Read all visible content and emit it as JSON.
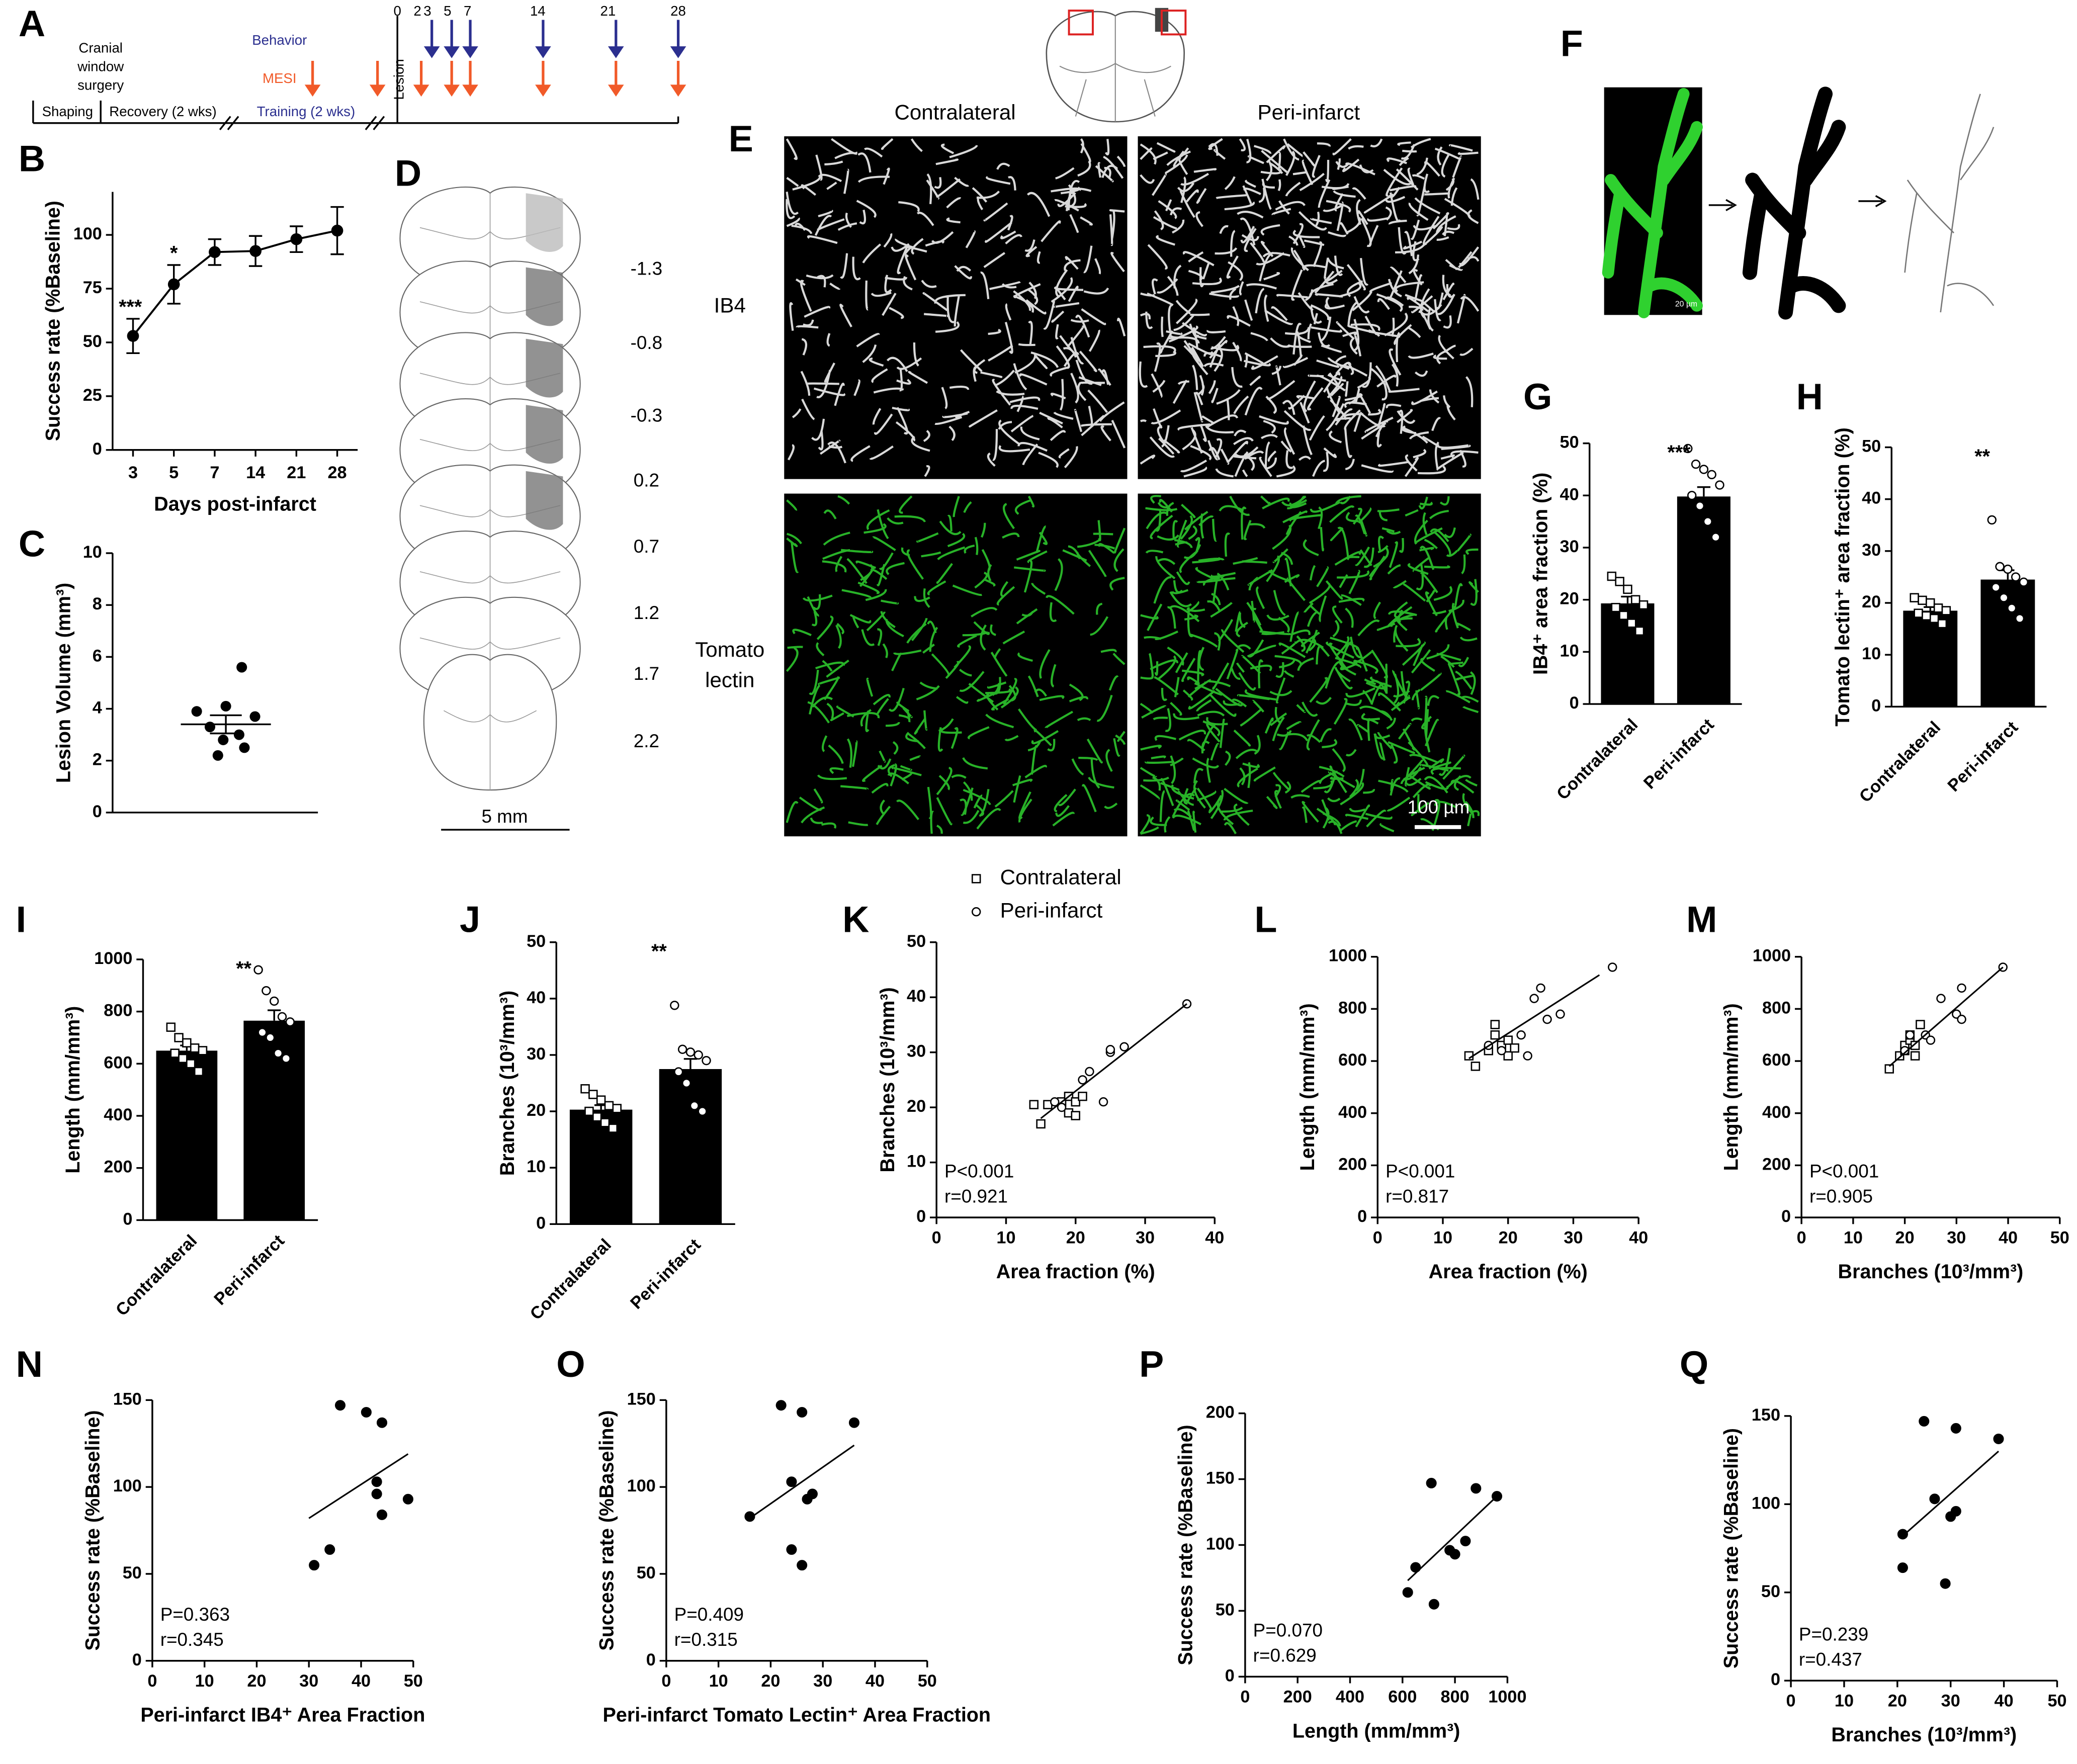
{
  "timeline": {
    "label": "A",
    "surgery": [
      "Cranial",
      "window",
      "surgery"
    ],
    "behavior": "Behavior",
    "mesi": "MESI",
    "phases": [
      "Shaping",
      "Recovery (2 wks)",
      "Training (2 wks)"
    ],
    "lesion": "Lesion",
    "days": [
      0,
      2,
      3,
      5,
      7,
      14,
      21,
      28
    ]
  },
  "atlas": {
    "label": "D",
    "levels": [
      "-1.3",
      "-0.8",
      "-0.3",
      "0.2",
      "0.7",
      "1.2",
      "1.7",
      "2.2"
    ],
    "scale": "5 mm"
  },
  "micrographs": {
    "label": "E",
    "columns": [
      "Contralateral",
      "Peri-infarct"
    ],
    "rows": [
      [
        "IB4"
      ],
      [
        "Tomato",
        "lectin"
      ]
    ],
    "scale": "100 µm"
  },
  "tracing": {
    "label": "F",
    "scale": "20 µm"
  },
  "chart_data": [
    {
      "label": "B",
      "type": "line",
      "categories": [
        "3",
        "5",
        "7",
        "14",
        "21",
        "28"
      ],
      "values": [
        53,
        77,
        92,
        92.5,
        98,
        102
      ],
      "errors": [
        8,
        9,
        6,
        7,
        6,
        11
      ],
      "annotations": [
        "***",
        "*",
        null,
        null,
        null,
        null
      ],
      "ylim": [
        0,
        120
      ],
      "yticks": [
        0,
        25,
        50,
        75,
        100
      ],
      "ylabel": "Success rate (%Baseline)",
      "xlabel": "Days post-infarct",
      "color": "#000000"
    },
    {
      "label": "C",
      "type": "dot",
      "values": [
        5.6,
        4.1,
        3.9,
        3.7,
        3.3,
        3.0,
        2.8,
        2.5,
        2.2
      ],
      "mean": 3.4,
      "sem": 0.35,
      "ylim": [
        0,
        10
      ],
      "yticks": [
        0,
        2,
        4,
        6,
        8,
        10
      ],
      "ylabel": "Lesion Volume (mm³)",
      "color": "#000000"
    },
    {
      "label": "G",
      "type": "bar",
      "categories": [
        "Contralateral",
        "Peri-infarct"
      ],
      "values": [
        19.3,
        39.8
      ],
      "errors": [
        1.3,
        1.8
      ],
      "points": [
        [
          24.5,
          23.5,
          22,
          20,
          19,
          18.5,
          17,
          15.5,
          14
        ],
        [
          49,
          46,
          45,
          44,
          42,
          40,
          38,
          35,
          32
        ]
      ],
      "markers": [
        "square",
        "circle"
      ],
      "annotation": "***",
      "ylim": [
        0,
        50
      ],
      "yticks": [
        0,
        10,
        20,
        30,
        40,
        50
      ],
      "ylabel": "IB4⁺ area fraction (%)",
      "color": "#000000"
    },
    {
      "label": "H",
      "type": "bar",
      "categories": [
        "Contralateral",
        "Peri-infarct"
      ],
      "values": [
        18.5,
        24.5
      ],
      "errors": [
        0.7,
        1.8
      ],
      "points": [
        [
          21,
          20.5,
          20,
          19,
          18.5,
          18,
          17.5,
          17,
          16
        ],
        [
          36,
          27,
          26.5,
          25,
          24,
          23,
          21,
          19,
          17
        ]
      ],
      "markers": [
        "square",
        "circle"
      ],
      "annotation": "**",
      "ylim": [
        0,
        50
      ],
      "yticks": [
        0,
        10,
        20,
        30,
        40,
        50
      ],
      "ylabel": "Tomato lectin⁺ area fraction (%)",
      "color": "#000000"
    },
    {
      "label": "I",
      "type": "bar",
      "categories": [
        "Contralateral",
        "Peri-infarct"
      ],
      "values": [
        650,
        765
      ],
      "errors": [
        20,
        40
      ],
      "points": [
        [
          740,
          700,
          680,
          660,
          650,
          640,
          620,
          600,
          570
        ],
        [
          960,
          880,
          840,
          780,
          760,
          720,
          700,
          640,
          620
        ]
      ],
      "markers": [
        "square",
        "circle"
      ],
      "annotation": "**",
      "ylim": [
        0,
        1000
      ],
      "yticks": [
        0,
        200,
        400,
        600,
        800,
        1000
      ],
      "ylabel": "Length (mm/mm³)",
      "color": "#000000"
    },
    {
      "label": "J",
      "type": "bar",
      "categories": [
        "Contralateral",
        "Peri-infarct"
      ],
      "values": [
        20.3,
        27.5
      ],
      "errors": [
        0.8,
        1.8
      ],
      "points": [
        [
          24,
          23,
          22,
          21,
          20.5,
          20,
          19,
          18,
          17
        ],
        [
          38.8,
          31,
          30.5,
          30,
          29,
          27,
          25,
          21,
          20
        ]
      ],
      "markers": [
        "square",
        "circle"
      ],
      "annotation": "**",
      "ylim": [
        0,
        50
      ],
      "yticks": [
        0,
        10,
        20,
        30,
        40,
        50
      ],
      "ylabel": "Branches (10³/mm³)",
      "color": "#000000"
    },
    {
      "label": "K",
      "type": "scatter",
      "series": [
        {
          "name": "Contralateral",
          "marker": "square",
          "x": [
            14,
            15,
            16,
            18,
            19,
            19,
            20,
            20,
            21
          ],
          "values": [
            20.5,
            17,
            20.5,
            21,
            19,
            22,
            18.5,
            21,
            22
          ]
        },
        {
          "name": "Peri-infarct",
          "marker": "circle",
          "x": [
            17,
            18,
            21,
            22,
            24,
            25,
            25,
            27,
            36
          ],
          "values": [
            21,
            20,
            25,
            26.5,
            21,
            30,
            30.5,
            31,
            38.8
          ]
        }
      ],
      "fit": {
        "x": [
          15,
          36
        ],
        "y": [
          18,
          38.8
        ]
      },
      "stats": [
        "P<0.001",
        "r=0.921"
      ],
      "xlim": [
        0,
        40
      ],
      "xticks": [
        0,
        10,
        20,
        30,
        40
      ],
      "ylim": [
        0,
        50
      ],
      "yticks": [
        0,
        10,
        20,
        30,
        40,
        50
      ],
      "xlabel": "Area fraction (%)",
      "ylabel": "Branches (10³/mm³)"
    },
    {
      "label": "L",
      "type": "scatter",
      "series": [
        {
          "marker": "square",
          "x": [
            14,
            15,
            17,
            18,
            18,
            19,
            20,
            20,
            21
          ],
          "values": [
            620,
            580,
            640,
            700,
            740,
            660,
            620,
            680,
            650
          ]
        },
        {
          "marker": "circle",
          "x": [
            17,
            19,
            22,
            23,
            24,
            25,
            26,
            28,
            36
          ],
          "values": [
            660,
            640,
            700,
            620,
            840,
            880,
            760,
            780,
            960
          ]
        }
      ],
      "fit": {
        "x": [
          14,
          34
        ],
        "y": [
          610,
          930
        ]
      },
      "stats": [
        "P<0.001",
        "r=0.817"
      ],
      "xlim": [
        0,
        40
      ],
      "xticks": [
        0,
        10,
        20,
        30,
        40
      ],
      "ylim": [
        0,
        1000
      ],
      "yticks": [
        0,
        200,
        400,
        600,
        800,
        1000
      ],
      "xlabel": "Area fraction (%)",
      "ylabel": "Length (mm/mm³)"
    },
    {
      "label": "M",
      "type": "scatter",
      "series": [
        {
          "marker": "square",
          "x": [
            17,
            19,
            20,
            20,
            21,
            21,
            22,
            22,
            23
          ],
          "values": [
            570,
            620,
            640,
            660,
            680,
            700,
            620,
            660,
            740
          ]
        },
        {
          "marker": "circle",
          "x": [
            20,
            21,
            24,
            25,
            27,
            30,
            31,
            31,
            39
          ],
          "values": [
            640,
            700,
            700,
            680,
            840,
            780,
            880,
            760,
            960
          ]
        }
      ],
      "fit": {
        "x": [
          17,
          39
        ],
        "y": [
          580,
          960
        ]
      },
      "stats": [
        "P<0.001",
        "r=0.905"
      ],
      "xlim": [
        0,
        50
      ],
      "xticks": [
        0,
        10,
        20,
        30,
        40,
        50
      ],
      "ylim": [
        0,
        1000
      ],
      "yticks": [
        0,
        200,
        400,
        600,
        800,
        1000
      ],
      "xlabel": "Branches (10³/mm³)",
      "ylabel": "Length (mm/mm³)"
    },
    {
      "label": "N",
      "type": "scatter",
      "series": [
        {
          "marker": "dot",
          "x": [
            31,
            34,
            36,
            41,
            43,
            43,
            44,
            44,
            49
          ],
          "values": [
            55,
            64,
            147,
            143,
            103,
            96,
            137,
            84,
            93
          ]
        }
      ],
      "fit": {
        "x": [
          30,
          49
        ],
        "y": [
          82,
          119
        ]
      },
      "stats": [
        "P=0.363",
        "r=0.345"
      ],
      "xlim": [
        0,
        50
      ],
      "xticks": [
        0,
        10,
        20,
        30,
        40,
        50
      ],
      "ylim": [
        0,
        150
      ],
      "yticks": [
        0,
        50,
        100,
        150
      ],
      "xlabel": "Peri-infarct IB4⁺  Area Fraction",
      "ylabel": "Success rate (%Baseline)"
    },
    {
      "label": "O",
      "type": "scatter",
      "series": [
        {
          "marker": "dot",
          "x": [
            16,
            22,
            24,
            24,
            26,
            26,
            27,
            28,
            36
          ],
          "values": [
            83,
            147,
            103,
            64,
            143,
            55,
            93,
            96,
            137
          ]
        }
      ],
      "fit": {
        "x": [
          16,
          36
        ],
        "y": [
          82,
          124
        ]
      },
      "stats": [
        "P=0.409",
        "r=0.315"
      ],
      "xlim": [
        0,
        50
      ],
      "xticks": [
        0,
        10,
        20,
        30,
        40,
        50
      ],
      "ylim": [
        0,
        150
      ],
      "yticks": [
        0,
        50,
        100,
        150
      ],
      "xlabel": "Peri-infarct Tomato Lectin⁺  Area Fraction",
      "ylabel": "Success rate (%Baseline)"
    },
    {
      "label": "P",
      "type": "scatter",
      "series": [
        {
          "marker": "dot",
          "x": [
            620,
            650,
            710,
            720,
            780,
            800,
            840,
            880,
            960
          ],
          "values": [
            64,
            83,
            147,
            55,
            96,
            93,
            103,
            143,
            137
          ]
        }
      ],
      "fit": {
        "x": [
          620,
          960
        ],
        "y": [
          73,
          137
        ]
      },
      "stats": [
        "P=0.070",
        "r=0.629"
      ],
      "xlim": [
        0,
        1000
      ],
      "xticks": [
        0,
        200,
        400,
        600,
        800,
        1000
      ],
      "ylim": [
        0,
        200
      ],
      "yticks": [
        0,
        50,
        100,
        150,
        200
      ],
      "xlabel": "Length (mm/mm³)",
      "ylabel": "Success rate (%Baseline)"
    },
    {
      "label": "Q",
      "type": "scatter",
      "series": [
        {
          "marker": "dot",
          "x": [
            21,
            21,
            25,
            27,
            29,
            30,
            31,
            31,
            39
          ],
          "values": [
            83,
            64,
            147,
            103,
            55,
            93,
            96,
            143,
            137
          ]
        }
      ],
      "fit": {
        "x": [
          21,
          39
        ],
        "y": [
          82,
          130
        ]
      },
      "stats": [
        "P=0.239",
        "r=0.437"
      ],
      "xlim": [
        0,
        50
      ],
      "xticks": [
        0,
        10,
        20,
        30,
        40,
        50
      ],
      "ylim": [
        0,
        150
      ],
      "yticks": [
        0,
        50,
        100,
        150
      ],
      "xlabel": "Branches (10³/mm³)",
      "ylabel": "Success rate (%Baseline)"
    }
  ]
}
